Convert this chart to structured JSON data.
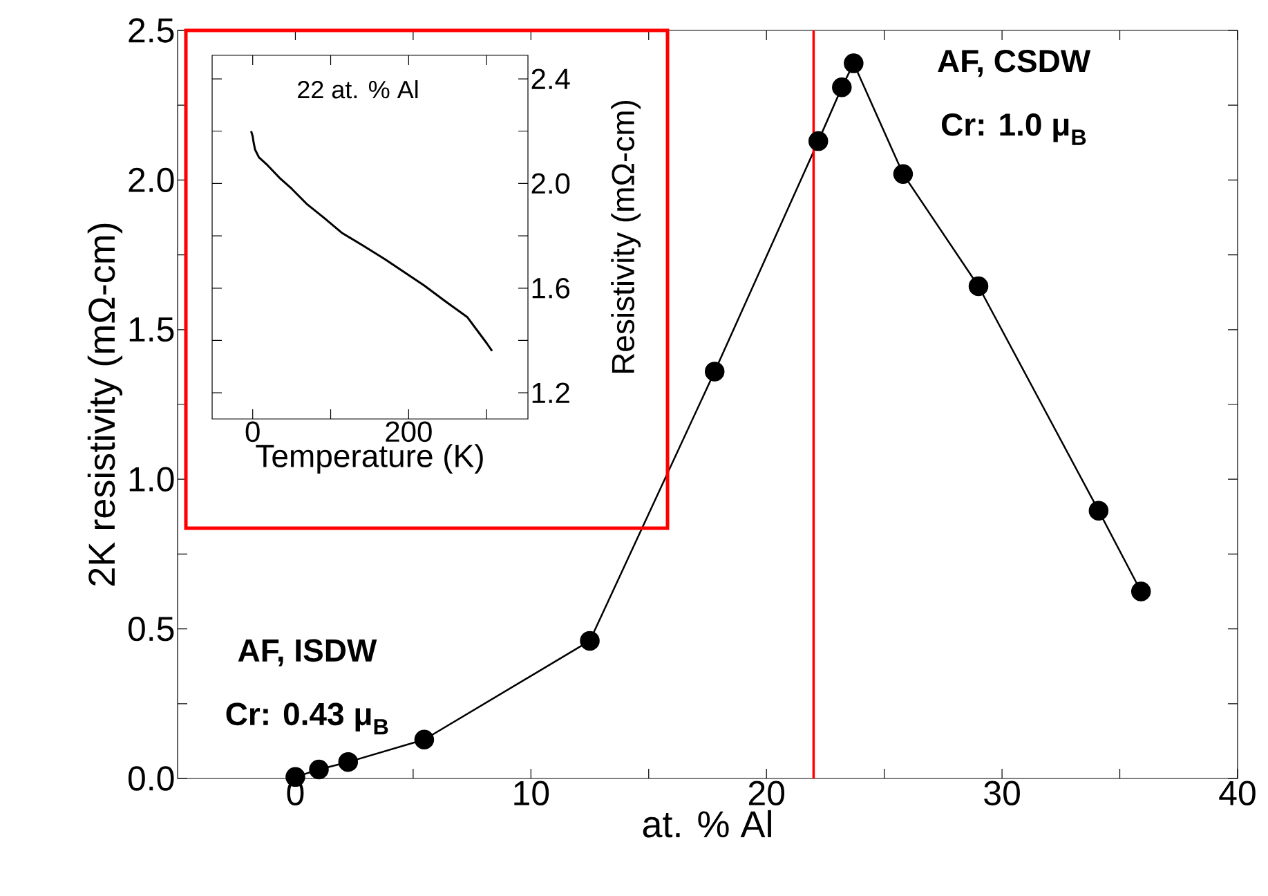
{
  "chart_data": [
    {
      "type": "line",
      "xlabel": "at. % Al",
      "ylabel": "2K resistivity  (mΩ-cm)",
      "x": [
        0,
        1.0,
        2.24,
        5.47,
        12.5,
        17.8,
        22.2,
        23.2,
        23.7,
        25.8,
        29.0,
        34.1,
        35.9
      ],
      "series": [
        {
          "color": "#000000",
          "values": [
            0.005,
            0.03,
            0.055,
            0.13,
            0.46,
            1.36,
            2.13,
            2.31,
            2.39,
            2.02,
            1.645,
            0.895,
            0.625
          ]
        }
      ],
      "marker": "circle",
      "line_style": "solid",
      "xlim": [
        -5,
        40
      ],
      "xticks": [
        0,
        {
          "value": 5,
          "label": null
        },
        10,
        {
          "value": 15,
          "label": null
        },
        20,
        {
          "value": 25,
          "label": null
        },
        30,
        {
          "value": 35,
          "label": null
        },
        40
      ],
      "ylim": [
        0,
        2.5
      ],
      "yticks": [
        {
          "value": 0,
          "label": "0.0"
        },
        {
          "value": 0.25,
          "label": null
        },
        {
          "value": 0.5,
          "label": "0.5"
        },
        {
          "value": 0.75,
          "label": null
        },
        {
          "value": 1,
          "label": "1.0"
        },
        {
          "value": 1.25,
          "label": null
        },
        {
          "value": 1.5,
          "label": "1.5"
        },
        {
          "value": 1.75,
          "label": null
        },
        {
          "value": 2,
          "label": "2.0"
        },
        {
          "value": 2.25,
          "label": null
        },
        {
          "value": 2.5,
          "label": "2.5"
        }
      ],
      "ref_lines": [
        {
          "axis": "x",
          "value": 22,
          "color": "#ff0000"
        }
      ],
      "annotations": [
        "AF, CSDW",
        "Cr: 1.0 μ$_{B}$",
        "AF, ISDW",
        "Cr: 0.43 μ$_{B}$"
      ]
    },
    {
      "type": "line",
      "xlabel": "Temperature (K)",
      "ylabel": "Resistivity (mΩ-cm)",
      "x": [
        -2,
        0,
        1,
        3,
        8,
        19,
        35,
        50,
        70,
        91,
        115,
        143,
        170,
        195,
        220,
        247,
        275,
        300,
        307
      ],
      "series": [
        {
          "color": "#000000",
          "values": [
            2.2,
            2.18,
            2.16,
            2.13,
            2.1,
            2.07,
            2.02,
            1.98,
            1.92,
            1.87,
            1.81,
            1.76,
            1.71,
            1.66,
            1.61,
            1.55,
            1.49,
            1.39,
            1.36
          ]
        }
      ],
      "marker": "none",
      "line_style": "solid",
      "xlim": [
        -52,
        353
      ],
      "xticks": [
        0,
        {
          "value": 100,
          "label": null
        },
        200,
        {
          "value": 300,
          "label": null
        }
      ],
      "ylim": [
        1.1,
        2.49
      ],
      "yticks": [
        1.2,
        {
          "value": 1.4,
          "label": null
        },
        1.6,
        {
          "value": 1.8,
          "label": null
        },
        {
          "value": 2.0,
          "label": "2.0"
        },
        {
          "value": 2.2,
          "label": null
        },
        2.4
      ],
      "annotations": [
        "22 at. % Al"
      ]
    }
  ]
}
